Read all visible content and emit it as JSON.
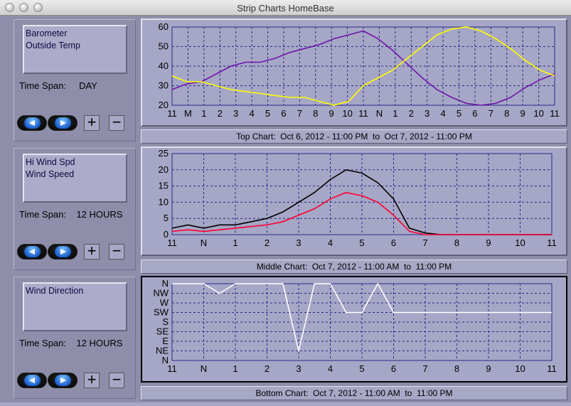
{
  "window": {
    "title": "Strip Charts    HomeBase"
  },
  "panels": [
    {
      "legend": [
        "Barometer",
        "Outside Temp"
      ],
      "timespan_label": "Time Span:",
      "timespan_value": "DAY",
      "caption": "Top Chart:  Oct 6, 2012 - 11:00 PM  to  Oct 7, 2012 - 11:00 PM"
    },
    {
      "legend": [
        "Hi Wind Spd",
        "Wind Speed"
      ],
      "timespan_label": "Time Span:",
      "timespan_value": "12 HOURS",
      "caption": "Middle Chart:  Oct 7, 2012 - 11:00 AM  to  11:00 PM"
    },
    {
      "legend": [
        "Wind Direction"
      ],
      "timespan_label": "Time Span:",
      "timespan_value": "12 HOURS",
      "caption": "Bottom Chart:  Oct 7, 2012 - 11:00 AM  to  11:00 PM"
    }
  ],
  "buttons": {
    "plus": "+",
    "minus": "−"
  },
  "icons": {
    "prev": "left-arrow-icon",
    "next": "right-arrow-icon"
  },
  "colors": {
    "grid": "#2b2b8a",
    "barometer": "#6d16a8",
    "outside_temp": "#ffff00",
    "hi_wind": "#000000",
    "wind_speed": "#ff0030",
    "wind_dir": "#ffffff"
  },
  "chart_data": [
    {
      "type": "line",
      "x_ticks": [
        "11",
        "M",
        "1",
        "2",
        "3",
        "4",
        "5",
        "6",
        "7",
        "8",
        "9",
        "10",
        "11",
        "N",
        "1",
        "2",
        "3",
        "4",
        "5",
        "6",
        "7",
        "8",
        "9",
        "10",
        "11"
      ],
      "y_ticks": [
        "60",
        "50",
        "40",
        "30",
        "20"
      ],
      "ylim": [
        20,
        60
      ],
      "grid": true,
      "series": [
        {
          "name": "Barometer",
          "values": [
            28,
            31,
            32,
            36,
            40,
            42,
            42,
            44,
            47,
            49,
            51,
            54,
            56,
            58,
            54,
            48,
            41,
            34,
            28,
            24,
            21,
            20,
            21,
            24,
            29,
            33,
            36
          ]
        },
        {
          "name": "Outside Temp",
          "values": [
            35,
            32,
            32,
            30,
            28,
            27,
            26,
            25,
            24,
            24,
            22,
            20,
            22,
            30,
            34,
            38,
            44,
            50,
            56,
            59,
            60,
            58,
            54,
            49,
            43,
            38,
            35
          ]
        }
      ]
    },
    {
      "type": "line",
      "x_ticks": [
        "11",
        "N",
        "1",
        "2",
        "3",
        "4",
        "5",
        "6",
        "7",
        "8",
        "9",
        "10",
        "11"
      ],
      "y_ticks": [
        "25",
        "20",
        "15",
        "10",
        "5",
        "0"
      ],
      "ylim": [
        0,
        25
      ],
      "grid": true,
      "series": [
        {
          "name": "Hi Wind Spd",
          "values": [
            2,
            3,
            2,
            3,
            3,
            4,
            5,
            7,
            10,
            13,
            17,
            20,
            19,
            16,
            11,
            2,
            0.5,
            0,
            0,
            0,
            0,
            0,
            0,
            0,
            0
          ]
        },
        {
          "name": "Wind Speed",
          "values": [
            1,
            1.5,
            1,
            1.5,
            2,
            2.5,
            3,
            4,
            6,
            8,
            11,
            13,
            12,
            10,
            6,
            1,
            0,
            0,
            0,
            0,
            0,
            0,
            0,
            0,
            0
          ]
        }
      ]
    },
    {
      "type": "line",
      "x_ticks": [
        "11",
        "N",
        "1",
        "2",
        "3",
        "4",
        "5",
        "6",
        "7",
        "8",
        "9",
        "10",
        "11"
      ],
      "y_ticks": [
        "N",
        "NW",
        "W",
        "SW",
        "S",
        "SE",
        "E",
        "NE",
        "N"
      ],
      "grid": true,
      "series": [
        {
          "name": "Wind Direction",
          "values": [
            "N",
            "N",
            "N",
            "NW",
            "N",
            "N",
            "N",
            "N",
            "NE",
            "N",
            "N",
            "SW",
            "SW",
            "N",
            "SW",
            "SW",
            "SW",
            "SW",
            "SW",
            "SW",
            "SW",
            "SW",
            "SW",
            "SW",
            "SW"
          ]
        }
      ]
    }
  ]
}
